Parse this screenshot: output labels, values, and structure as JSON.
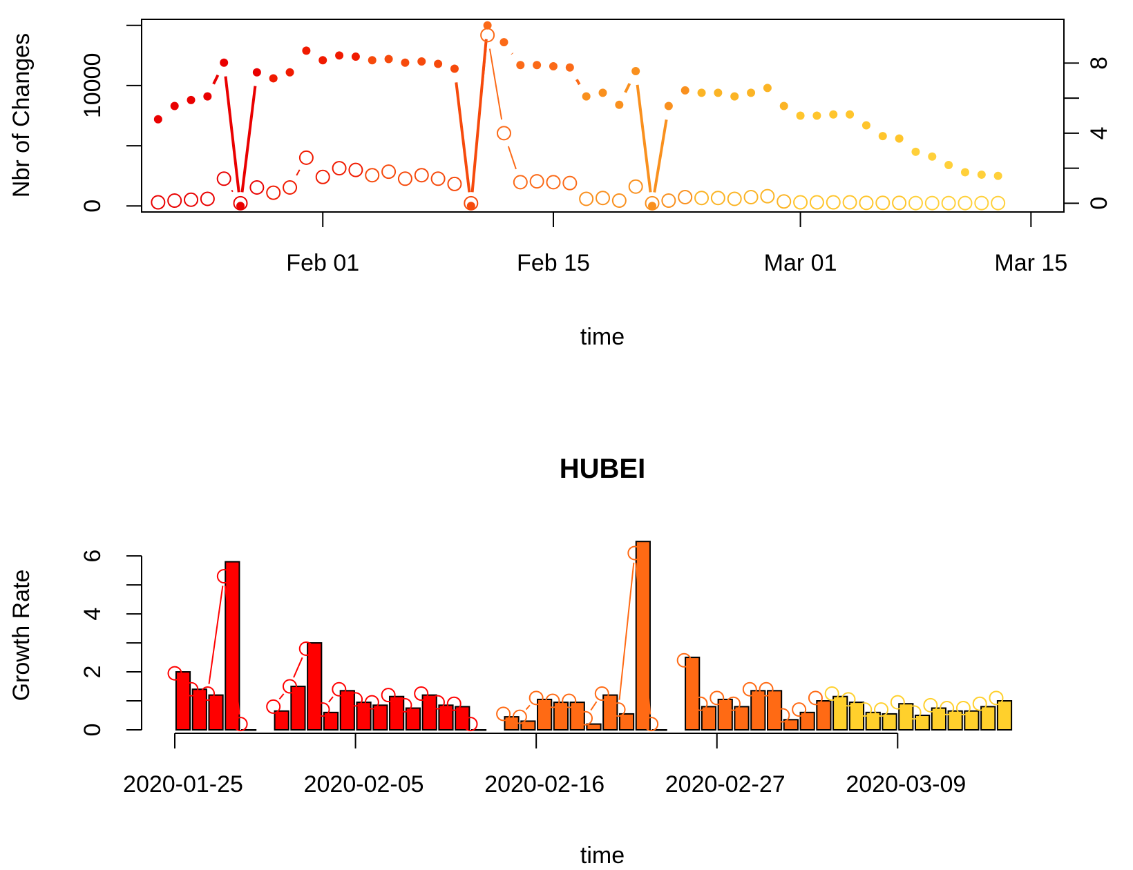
{
  "chart_data": [
    {
      "type": "line",
      "xlabel": "time",
      "ylabel": "Nbr of Changes",
      "xlim": [
        "2020-01-21",
        "2020-03-17"
      ],
      "ylim_left": [
        -500,
        15500
      ],
      "ylim_right": [
        -0.5,
        10.5
      ],
      "x_ticks": [
        {
          "date": "2020-02-01",
          "label": "Feb 01"
        },
        {
          "date": "2020-02-15",
          "label": "Feb 15"
        },
        {
          "date": "2020-03-01",
          "label": "Mar 01"
        },
        {
          "date": "2020-03-15",
          "label": "Mar 15"
        }
      ],
      "y_ticks_left": [
        {
          "value": 0,
          "label": "0"
        },
        {
          "value": 5000,
          "label": ""
        },
        {
          "value": 10000,
          "label": "10000"
        },
        {
          "value": 15000,
          "label": ""
        }
      ],
      "y_ticks_right": [
        {
          "value": 0,
          "label": "0"
        },
        {
          "value": 2,
          "label": ""
        },
        {
          "value": 4,
          "label": "4"
        },
        {
          "value": 6,
          "label": ""
        },
        {
          "value": 8,
          "label": "8"
        }
      ],
      "start_date": "2020-01-22",
      "series": [
        {
          "axis": "left",
          "marker": "filled",
          "values": [
            7200,
            8300,
            8800,
            9100,
            11900,
            0,
            11100,
            10600,
            11100,
            12900,
            12100,
            12500,
            12400,
            12100,
            12200,
            11900,
            12000,
            11800,
            11400,
            0,
            15000,
            13600,
            11700,
            11700,
            11600,
            11500,
            9100,
            9400,
            8400,
            11200,
            0,
            8300,
            9600,
            9400,
            9400,
            9100,
            9400,
            9800,
            8300,
            7500,
            7500,
            7600,
            7600,
            6700,
            5800,
            5600,
            4500,
            4100,
            3400,
            2800,
            2600,
            2500
          ]
        },
        {
          "axis": "right",
          "marker": "open",
          "values": [
            0.05,
            0.15,
            0.2,
            0.25,
            1.4,
            0.0,
            0.9,
            0.6,
            0.9,
            2.6,
            1.5,
            2.0,
            1.9,
            1.6,
            1.8,
            1.4,
            1.6,
            1.4,
            1.1,
            0.0,
            9.6,
            4.0,
            1.2,
            1.25,
            1.2,
            1.15,
            0.25,
            0.3,
            0.15,
            0.95,
            0.0,
            0.15,
            0.35,
            0.3,
            0.3,
            0.25,
            0.35,
            0.4,
            0.1,
            0.05,
            0.05,
            0.05,
            0.05,
            0.02,
            0.02,
            0.02,
            0.01,
            0.01,
            0.01,
            0.01,
            0.01,
            0.01
          ]
        }
      ],
      "colors": [
        "#e90000",
        "#f01a00",
        "#f64a0c",
        "#fb6a18",
        "#f9901e",
        "#fbb425",
        "#ffc52c",
        "#ffd03a"
      ]
    },
    {
      "type": "bar",
      "title": "HUBEI",
      "xlabel": "time",
      "ylabel": "Growth Rate",
      "xlim": [
        "2020-01-25",
        "2020-03-15"
      ],
      "ylim": [
        0,
        6.6
      ],
      "x_ticks": [
        {
          "date": "2020-01-25",
          "label": "2020-01-25"
        },
        {
          "date": "2020-02-05",
          "label": "2020-02-05"
        },
        {
          "date": "2020-02-16",
          "label": "2020-02-16"
        },
        {
          "date": "2020-02-27",
          "label": "2020-02-27"
        },
        {
          "date": "2020-03-09",
          "label": "2020-03-09"
        }
      ],
      "y_ticks": [
        {
          "value": 0,
          "label": "0"
        },
        {
          "value": 1,
          "label": ""
        },
        {
          "value": 2,
          "label": "2"
        },
        {
          "value": 3,
          "label": ""
        },
        {
          "value": 4,
          "label": "4"
        },
        {
          "value": 5,
          "label": ""
        },
        {
          "value": 6,
          "label": "6"
        }
      ],
      "start_date": "2020-01-25",
      "bars": [
        2.0,
        1.4,
        1.2,
        5.8,
        0.0,
        null,
        0.65,
        1.5,
        3.0,
        0.6,
        1.35,
        0.95,
        0.85,
        1.15,
        0.75,
        1.2,
        0.85,
        0.8,
        0.0,
        null,
        0.45,
        0.3,
        1.05,
        0.95,
        0.95,
        0.2,
        1.2,
        0.55,
        6.5,
        0.0,
        null,
        2.5,
        0.8,
        1.05,
        0.8,
        1.35,
        1.35,
        0.35,
        0.6,
        1.0,
        1.15,
        0.95,
        0.6,
        0.55,
        0.9,
        0.5,
        0.75,
        0.65,
        0.65,
        0.8,
        1.0
      ],
      "points": [
        1.95,
        1.4,
        1.25,
        5.3,
        0.2,
        null,
        0.8,
        1.5,
        2.8,
        0.7,
        1.4,
        1.05,
        0.95,
        1.2,
        0.85,
        1.25,
        0.95,
        0.9,
        0.2,
        null,
        0.55,
        0.45,
        1.1,
        1.0,
        1.0,
        0.4,
        1.25,
        0.7,
        6.1,
        0.2,
        null,
        2.4,
        0.9,
        1.1,
        0.9,
        1.4,
        1.4,
        0.5,
        0.7,
        1.1,
        1.25,
        1.05,
        0.7,
        0.7,
        0.95,
        0.6,
        0.85,
        0.75,
        0.75,
        0.9,
        1.1
      ],
      "colors": [
        "#ff0000",
        "#ff6a14",
        "#ffd02c"
      ]
    }
  ]
}
